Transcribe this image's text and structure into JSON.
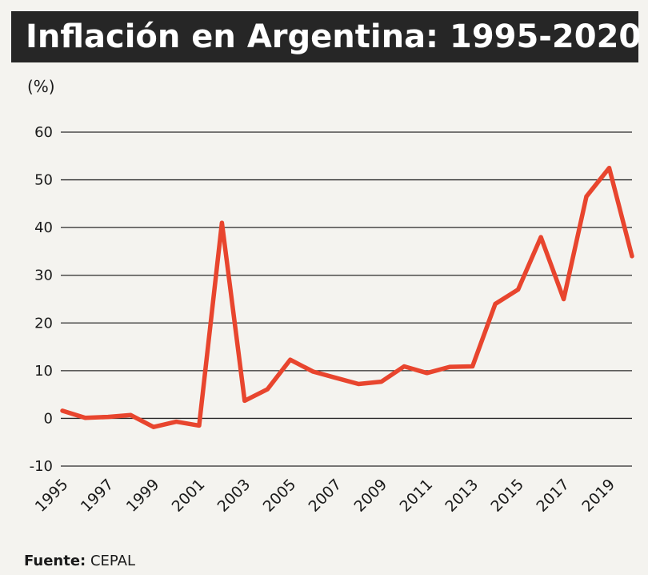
{
  "chart_data": {
    "type": "line",
    "title": "Inflación en Argentina: 1995-2020",
    "ylabel": "(%)",
    "xlabel": "",
    "ylim": [
      -10,
      60
    ],
    "yticks": [
      60,
      50,
      40,
      30,
      20,
      10,
      0,
      -10
    ],
    "xtick_labels": [
      "1995",
      "1997",
      "1999",
      "2001",
      "2003",
      "2005",
      "2007",
      "2009",
      "2011",
      "2013",
      "2015",
      "2017",
      "2019"
    ],
    "x": [
      1995,
      1996,
      1997,
      1998,
      1999,
      2000,
      2001,
      2002,
      2003,
      2004,
      2005,
      2006,
      2007,
      2008,
      2009,
      2010,
      2011,
      2012,
      2013,
      2014,
      2015,
      2016,
      2017,
      2018,
      2019,
      2020
    ],
    "series": [
      {
        "name": "Inflación",
        "color": "#e8452e",
        "values": [
          1.6,
          0.1,
          0.3,
          0.7,
          -1.8,
          -0.7,
          -1.5,
          41.0,
          3.7,
          6.1,
          12.3,
          9.8,
          8.5,
          7.2,
          7.7,
          10.9,
          9.5,
          10.8,
          10.9,
          24.0,
          27.0,
          38.0,
          25.0,
          46.5,
          52.5,
          34.0
        ]
      }
    ],
    "grid": true,
    "source_label": "Fuente:",
    "source_value": "CEPAL"
  }
}
